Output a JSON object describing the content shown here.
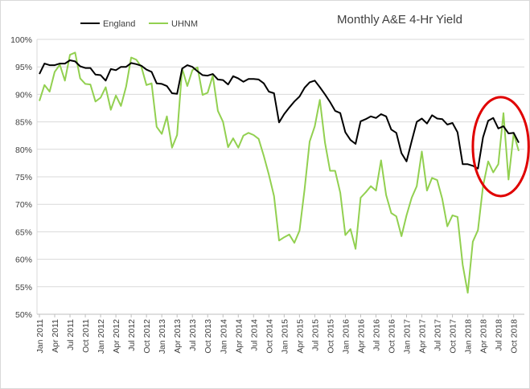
{
  "chart_data": {
    "type": "line",
    "title": "Monthly A&E 4-Hr Yield",
    "xlabel": "",
    "ylabel": "",
    "ylim": [
      0.5,
      1.0
    ],
    "yticks": [
      "50%",
      "55%",
      "60%",
      "65%",
      "70%",
      "75%",
      "80%",
      "85%",
      "90%",
      "95%",
      "100%"
    ],
    "grid": "horizontal",
    "legend_position": "top-left",
    "start_month": "Jan 2011",
    "xtick_labels": [
      "Jan 2011",
      "Apr 2011",
      "Jul 2011",
      "Oct 2011",
      "Jan 2012",
      "Apr 2012",
      "Jul 2012",
      "Oct 2012",
      "Jan 2013",
      "Apr 2013",
      "Jul 2013",
      "Oct 2013",
      "Jan 2014",
      "Apr 2014",
      "Jul 2014",
      "Oct 2014",
      "Jan 2015",
      "Apr 2015",
      "Jul 2015",
      "Oct 2015",
      "Jan 2016",
      "Apr 2016",
      "Jul 2016",
      "Oct 2016",
      "Jan 2017",
      "Apr 2017",
      "Jul 2017",
      "Oct 2017",
      "Jan 2018",
      "Apr 2018",
      "Jul 2018",
      "Oct 2018"
    ],
    "series": [
      {
        "name": "England",
        "color": "#000000",
        "values": [
          0.937,
          0.956,
          0.953,
          0.953,
          0.956,
          0.956,
          0.962,
          0.96,
          0.951,
          0.948,
          0.948,
          0.936,
          0.935,
          0.925,
          0.946,
          0.944,
          0.95,
          0.95,
          0.957,
          0.955,
          0.952,
          0.945,
          0.941,
          0.92,
          0.919,
          0.915,
          0.902,
          0.901,
          0.947,
          0.953,
          0.95,
          0.942,
          0.935,
          0.934,
          0.937,
          0.927,
          0.926,
          0.918,
          0.933,
          0.929,
          0.923,
          0.928,
          0.928,
          0.927,
          0.92,
          0.905,
          0.902,
          0.849,
          0.864,
          0.876,
          0.887,
          0.896,
          0.912,
          0.922,
          0.925,
          0.913,
          0.9,
          0.886,
          0.87,
          0.866,
          0.831,
          0.817,
          0.81,
          0.851,
          0.855,
          0.86,
          0.857,
          0.864,
          0.86,
          0.836,
          0.83,
          0.793,
          0.778,
          0.815,
          0.85,
          0.856,
          0.847,
          0.862,
          0.856,
          0.855,
          0.845,
          0.848,
          0.831,
          0.773,
          0.773,
          0.77,
          0.765,
          0.822,
          0.852,
          0.857,
          0.838,
          0.842,
          0.829,
          0.83,
          0.812
        ]
      },
      {
        "name": "UHNM",
        "color": "#92d050",
        "values": [
          0.888,
          0.917,
          0.905,
          0.941,
          0.954,
          0.925,
          0.972,
          0.976,
          0.929,
          0.919,
          0.918,
          0.887,
          0.894,
          0.913,
          0.872,
          0.898,
          0.879,
          0.914,
          0.967,
          0.963,
          0.95,
          0.917,
          0.92,
          0.841,
          0.828,
          0.86,
          0.803,
          0.826,
          0.947,
          0.915,
          0.944,
          0.949,
          0.899,
          0.903,
          0.934,
          0.87,
          0.85,
          0.804,
          0.82,
          0.803,
          0.825,
          0.83,
          0.826,
          0.819,
          0.788,
          0.754,
          0.715,
          0.634,
          0.64,
          0.645,
          0.63,
          0.652,
          0.727,
          0.814,
          0.842,
          0.89,
          0.812,
          0.761,
          0.761,
          0.721,
          0.644,
          0.655,
          0.619,
          0.712,
          0.722,
          0.733,
          0.725,
          0.78,
          0.717,
          0.684,
          0.678,
          0.642,
          0.68,
          0.712,
          0.733,
          0.796,
          0.725,
          0.748,
          0.744,
          0.71,
          0.66,
          0.68,
          0.677,
          0.59,
          0.539,
          0.632,
          0.653,
          0.733,
          0.778,
          0.758,
          0.773,
          0.866,
          0.745,
          0.829,
          0.797
        ]
      }
    ],
    "annotations": [
      {
        "type": "ellipse",
        "color": "#e00000",
        "x_from": "Feb 2018",
        "x_to": "Dec 2018",
        "y_from": 0.715,
        "y_to": 0.895
      }
    ]
  }
}
